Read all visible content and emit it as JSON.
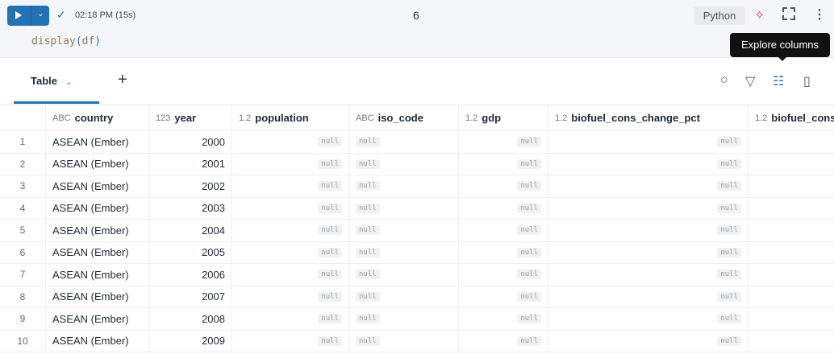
{
  "cell": {
    "run_status": "02:18 PM (15s)",
    "cell_number": "6",
    "language": "Python",
    "code_fn": "display",
    "code_arg": "df",
    "tooltip": "Explore columns"
  },
  "tabs": [
    {
      "label": "Table"
    }
  ],
  "columns": [
    {
      "type": "ABC",
      "name": "country"
    },
    {
      "type": "123",
      "name": "year"
    },
    {
      "type": "1.2",
      "name": "population"
    },
    {
      "type": "ABC",
      "name": "iso_code"
    },
    {
      "type": "1.2",
      "name": "gdp"
    },
    {
      "type": "1.2",
      "name": "biofuel_cons_change_pct"
    },
    {
      "type": "1.2",
      "name": "biofuel_cons_change_twh"
    }
  ],
  "null_label": "null",
  "rows": [
    {
      "n": "1",
      "country": "ASEAN (Ember)",
      "year": "2000"
    },
    {
      "n": "2",
      "country": "ASEAN (Ember)",
      "year": "2001"
    },
    {
      "n": "3",
      "country": "ASEAN (Ember)",
      "year": "2002"
    },
    {
      "n": "4",
      "country": "ASEAN (Ember)",
      "year": "2003"
    },
    {
      "n": "5",
      "country": "ASEAN (Ember)",
      "year": "2004"
    },
    {
      "n": "6",
      "country": "ASEAN (Ember)",
      "year": "2005"
    },
    {
      "n": "7",
      "country": "ASEAN (Ember)",
      "year": "2006"
    },
    {
      "n": "8",
      "country": "ASEAN (Ember)",
      "year": "2007"
    },
    {
      "n": "9",
      "country": "ASEAN (Ember)",
      "year": "2008"
    },
    {
      "n": "10",
      "country": "ASEAN (Ember)",
      "year": "2009"
    }
  ]
}
